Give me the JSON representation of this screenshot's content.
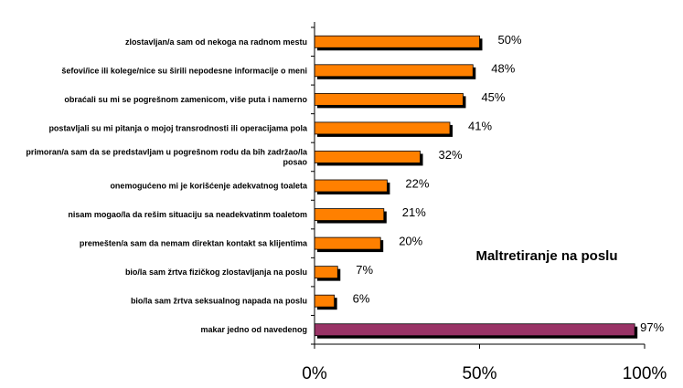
{
  "chart_data": {
    "type": "bar",
    "orientation": "horizontal",
    "title": "Maltretiranje na poslu",
    "xlabel": "",
    "ylabel": "",
    "xlim": [
      0,
      100
    ],
    "x_ticks": [
      "0%",
      "50%",
      "100%"
    ],
    "grid": false,
    "legend": "none",
    "categories": [
      [
        "zlostavljan/a sam od nekoga na radnom mestu"
      ],
      [
        "šefovi/ice ili kolege/nice su širili nepodesne informacije o meni"
      ],
      [
        "obraćali su mi se pogrešnom zamenicom, više puta i namerno"
      ],
      [
        "postavljali su mi pitanja o mojoj transrodnosti ili operacijama pola"
      ],
      [
        "primoran/a sam da se predstavljam u pogrešnom rodu da bih zadržao/la",
        "posao"
      ],
      [
        "onemogućeno mi je korišćenje adekvatnog toaleta"
      ],
      [
        "nisam mogao/la da rešim situaciju sa neadekvatinm toaletom"
      ],
      [
        "premešten/a sam da nemam direktan kontakt sa klijentima"
      ],
      [
        "bio/la sam žrtva fizičkog zlostavljanja na poslu"
      ],
      [
        "bio/la sam žrtva seksualnog napada na poslu"
      ],
      [
        "makar jedno od  navedenog"
      ]
    ],
    "values": [
      50,
      48,
      45,
      41,
      32,
      22,
      21,
      20,
      7,
      6,
      97
    ],
    "value_labels": [
      "50%",
      "48%",
      "45%",
      "41%",
      "32%",
      "22%",
      "21%",
      "20%",
      "7%",
      "6%",
      "97%"
    ],
    "colors": {
      "default_bar": "#ff8000",
      "highlight_bar": "#993366",
      "shadow": "#000000"
    },
    "highlight_index": 10
  }
}
